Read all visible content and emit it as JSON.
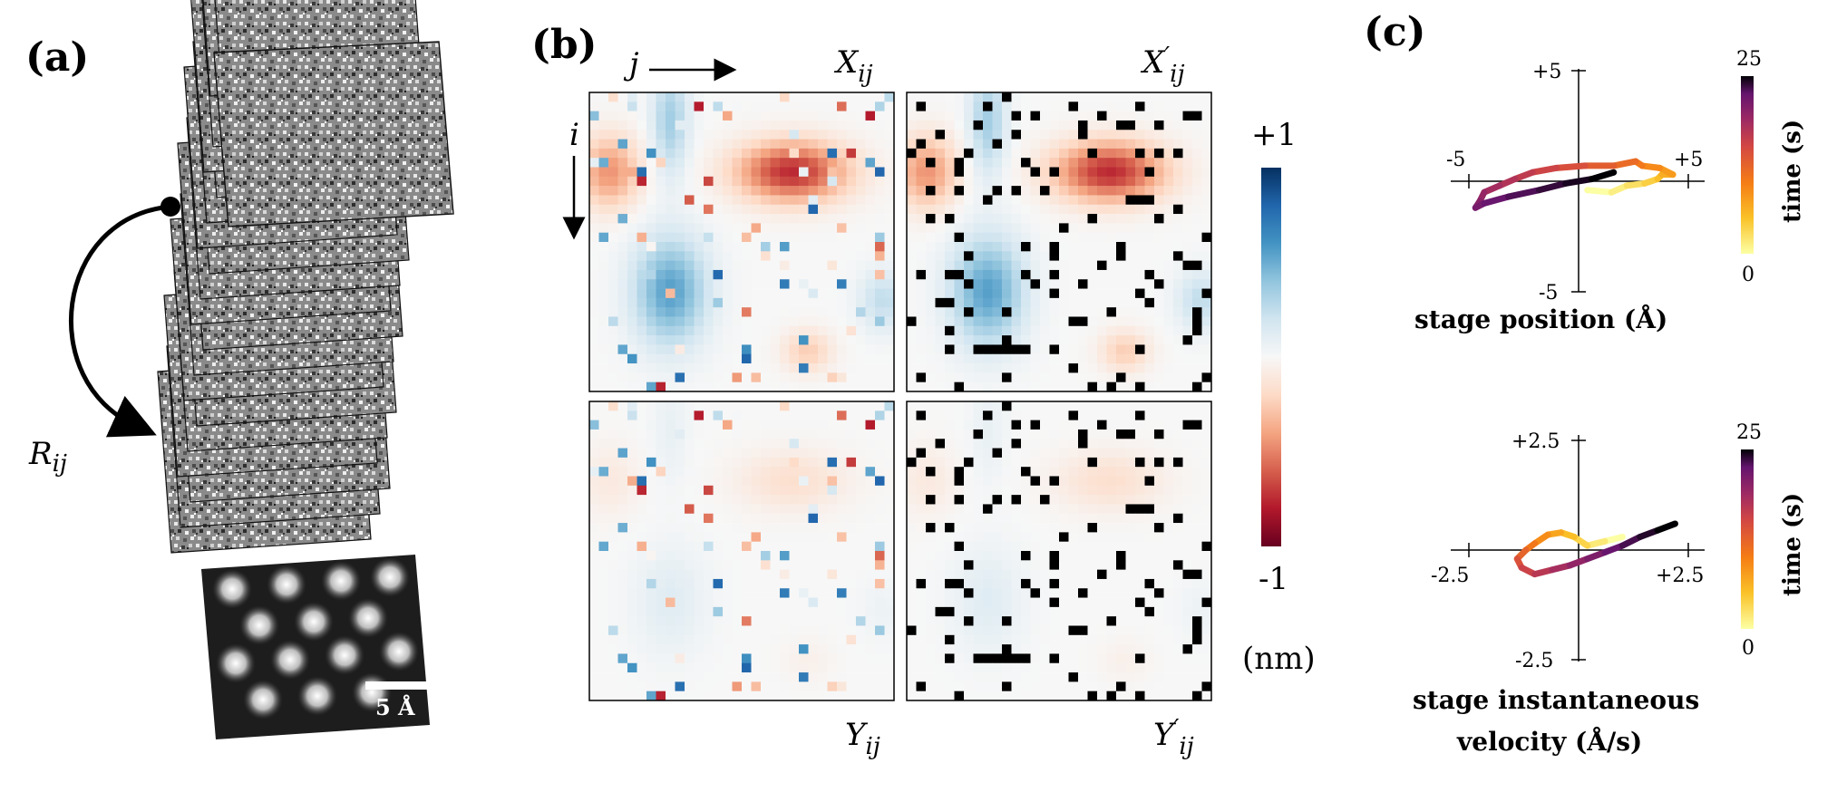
{
  "panels": {
    "a": {
      "label": "(a)",
      "rotation_label": "R",
      "rotation_sub": "ij",
      "scalebar_label": "5 Å"
    },
    "b": {
      "label": "(b)",
      "axis_j": "j",
      "axis_i": "i",
      "matrix_titles": {
        "X": {
          "base": "X",
          "prime": "",
          "sub": "ij"
        },
        "Xp": {
          "base": "X",
          "prime": "′",
          "sub": "ij"
        },
        "Y": {
          "base": "Y",
          "prime": "",
          "sub": "ij"
        },
        "Yp": {
          "base": "Y",
          "prime": "′",
          "sub": "ij"
        }
      },
      "colorbar": {
        "max_label": "+1",
        "min_label": "-1",
        "unit": "(nm)",
        "colors": [
          "#67001f",
          "#b2182b",
          "#d6604d",
          "#f4a582",
          "#fddbc7",
          "#f7f7f7",
          "#d1e5f0",
          "#92c5de",
          "#4393c3",
          "#2166ac",
          "#053061"
        ]
      }
    },
    "c": {
      "label": "(c)",
      "position_plot": {
        "xlabel": "stage position (Å)",
        "tick_top": "+5",
        "tick_bottom": "-5",
        "tick_left": "-5",
        "tick_right": "+5",
        "colorbar_label": "time (s)",
        "colorbar_max": "25",
        "colorbar_min": "0"
      },
      "velocity_plot": {
        "xlabel_line1": "stage instantaneous",
        "xlabel_line2": "velocity (Å/s)",
        "tick_top": "+2.5",
        "tick_bottom": "-2.5",
        "tick_left": "-2.5",
        "tick_right": "+2.5",
        "colorbar_label": "time (s)",
        "colorbar_max": "25",
        "colorbar_min": "0"
      }
    }
  },
  "chart_data": [
    {
      "type": "line",
      "title": "stage position",
      "xlabel": "stage position (Å)",
      "xlim": [
        -5,
        5
      ],
      "ylim": [
        -5,
        5
      ],
      "colorbar": {
        "label": "time (s)",
        "range": [
          0,
          25
        ]
      },
      "x": [
        0.4,
        1.5,
        2.2,
        3.0,
        3.6,
        3.8,
        4.3,
        3.7,
        2.9,
        2.6,
        1.6,
        0.3,
        -1.0,
        -2.1,
        -2.9,
        -3.6,
        -4.3,
        -4.5,
        -4.7,
        -4.3,
        -3.2,
        -1.8,
        -0.6,
        0.6,
        1.6
      ],
      "y": [
        -0.4,
        -0.5,
        -0.2,
        -0.1,
        0.1,
        0.3,
        0.3,
        0.6,
        0.7,
        0.9,
        0.7,
        0.7,
        0.6,
        0.4,
        0.1,
        -0.2,
        -0.5,
        -0.9,
        -1.2,
        -1.0,
        -0.7,
        -0.4,
        -0.1,
        0.1,
        0.4
      ]
    },
    {
      "type": "line",
      "title": "stage instantaneous velocity",
      "xlabel": "stage instantaneous velocity (Å/s)",
      "xlim": [
        -2.5,
        2.5
      ],
      "ylim": [
        -2.5,
        2.5
      ],
      "colorbar": {
        "label": "time (s)",
        "range": [
          0,
          25
        ]
      },
      "x": [
        1.0,
        0.6,
        0.2,
        -0.1,
        -0.4,
        -0.7,
        -1.0,
        -1.2,
        -1.4,
        -1.3,
        -1.0,
        -0.6,
        -0.2,
        0.2,
        0.6,
        1.0,
        1.4,
        1.8,
        2.2
      ],
      "y": [
        0.3,
        0.2,
        0.1,
        0.3,
        0.4,
        0.35,
        0.15,
        0.0,
        -0.2,
        -0.4,
        -0.55,
        -0.45,
        -0.35,
        -0.2,
        -0.05,
        0.1,
        0.3,
        0.45,
        0.6
      ]
    }
  ]
}
